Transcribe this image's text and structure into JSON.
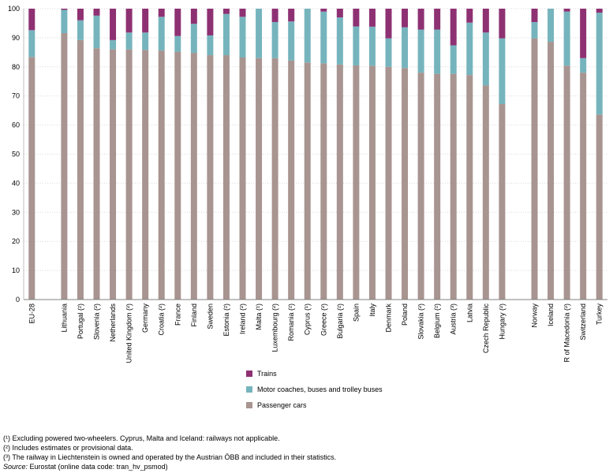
{
  "chart_data": {
    "type": "bar",
    "stacked": true,
    "ylim": [
      0,
      100
    ],
    "yticks": [
      0,
      10,
      20,
      30,
      40,
      50,
      60,
      70,
      80,
      90,
      100
    ],
    "grid": true,
    "categories": [
      "EU-28",
      "",
      "Lithuania",
      "Portugal (²)",
      "Slovenia (²)",
      "Netherlands",
      "United Kingdom (²)",
      "Germany",
      "Croatia (²)",
      "France",
      "Finland",
      "Sweden",
      "Estonia (²)",
      "Ireland (²)",
      "Malta (¹)",
      "Luxembourg (²)",
      "Romania (²)",
      "Cyprus (¹)",
      "Greece (²)",
      "Bulgaria (²)",
      "Spain",
      "Italy",
      "Denmark",
      "Poland",
      "Slovakia (²)",
      "Belgium (²)",
      "Austria (³)",
      "Latvia",
      "Czech Republic",
      "Hungary (²)",
      "",
      "Norway",
      "Iceland",
      "FYR of Macedonia (²)",
      "Switzerland",
      "Turkey"
    ],
    "series": [
      {
        "name": "Passenger cars",
        "color": "#a89490",
        "values": [
          83.4,
          null,
          91.6,
          89.2,
          86.4,
          86.0,
          86.0,
          85.8,
          85.6,
          85.2,
          84.8,
          84.0,
          84.0,
          83.2,
          83.0,
          83.0,
          82.2,
          81.5,
          81.2,
          80.8,
          80.5,
          80.4,
          80.0,
          79.6,
          78.0,
          77.6,
          77.6,
          77.2,
          73.6,
          67.2,
          null,
          89.8,
          88.6,
          80.4,
          78.0,
          63.6
        ]
      },
      {
        "name": "Motor coaches, buses and trolley buses",
        "color": "#76b4bd",
        "values": [
          9.2,
          null,
          8.0,
          6.8,
          11.2,
          3.2,
          5.8,
          6.0,
          11.6,
          5.4,
          10.0,
          6.8,
          14.2,
          14.0,
          17.0,
          12.4,
          13.4,
          18.5,
          17.8,
          16.2,
          13.4,
          13.4,
          9.8,
          14.0,
          14.8,
          15.2,
          9.8,
          18.0,
          18.2,
          22.6,
          null,
          5.6,
          11.4,
          18.6,
          5.0,
          35.0
        ]
      },
      {
        "name": "Trains",
        "color": "#8e3173",
        "values": [
          7.4,
          null,
          0.4,
          4.0,
          2.4,
          10.8,
          8.2,
          8.2,
          2.8,
          9.4,
          5.2,
          9.2,
          1.8,
          2.8,
          0.0,
          4.6,
          4.4,
          0.0,
          1.0,
          3.0,
          6.1,
          6.2,
          10.2,
          6.4,
          7.2,
          7.2,
          12.6,
          4.8,
          8.2,
          10.2,
          null,
          4.6,
          0.0,
          1.0,
          17.0,
          1.4
        ]
      }
    ]
  },
  "legend": [
    {
      "label": "Trains",
      "color": "#8e3173"
    },
    {
      "label": "Motor coaches, buses and trolley buses",
      "color": "#76b4bd"
    },
    {
      "label": "Passenger cars",
      "color": "#a89490"
    }
  ],
  "notes": {
    "note1": "(¹) Excluding powered two-wheelers. Cyprus, Malta and Iceland: railways not applicable.",
    "note2": "(²) Includes estimates or provisional data.",
    "note3": "(³) The railway in Liechtenstein is owned and operated by the Austrian ÖBB and included in their statistics.",
    "source_label": "Source:",
    "source_text": " Eurostat (online data code: tran_hv_psmod)"
  }
}
